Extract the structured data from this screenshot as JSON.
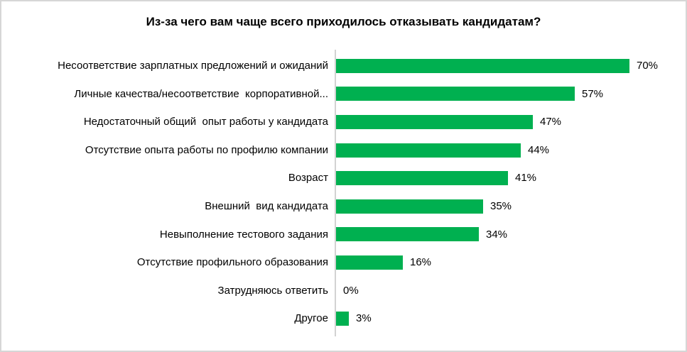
{
  "window": {
    "background": "#ffffff",
    "border_color": "#d6d6d6"
  },
  "chart_data": {
    "type": "bar",
    "orientation": "horizontal",
    "title": "Из-за чего вам чаще всего приходилось отказывать кандидатам?",
    "categories": [
      "Несоответствие зарплатных предложений и ожиданий",
      "Личные качества/несоответствие  корпоративной...",
      "Недостаточный общий  опыт работы у кандидата",
      "Отсутствие опыта работы по профилю компании",
      "Возраст",
      "Внешний  вид кандидата",
      "Невыполнение тестового задания",
      "Отсутствие профильного образования",
      "Затрудняюсь ответить",
      "Другое"
    ],
    "values": [
      70,
      57,
      47,
      44,
      41,
      35,
      34,
      16,
      0,
      3
    ],
    "value_labels": [
      "70%",
      "57%",
      "47%",
      "44%",
      "41%",
      "35%",
      "34%",
      "16%",
      "0%",
      "3%"
    ],
    "xlabel": "",
    "ylabel": "",
    "grid": false,
    "legend": "none",
    "bar_color": "#00b050",
    "axis_color": "#d2d2d2",
    "text_color": "#000000"
  }
}
